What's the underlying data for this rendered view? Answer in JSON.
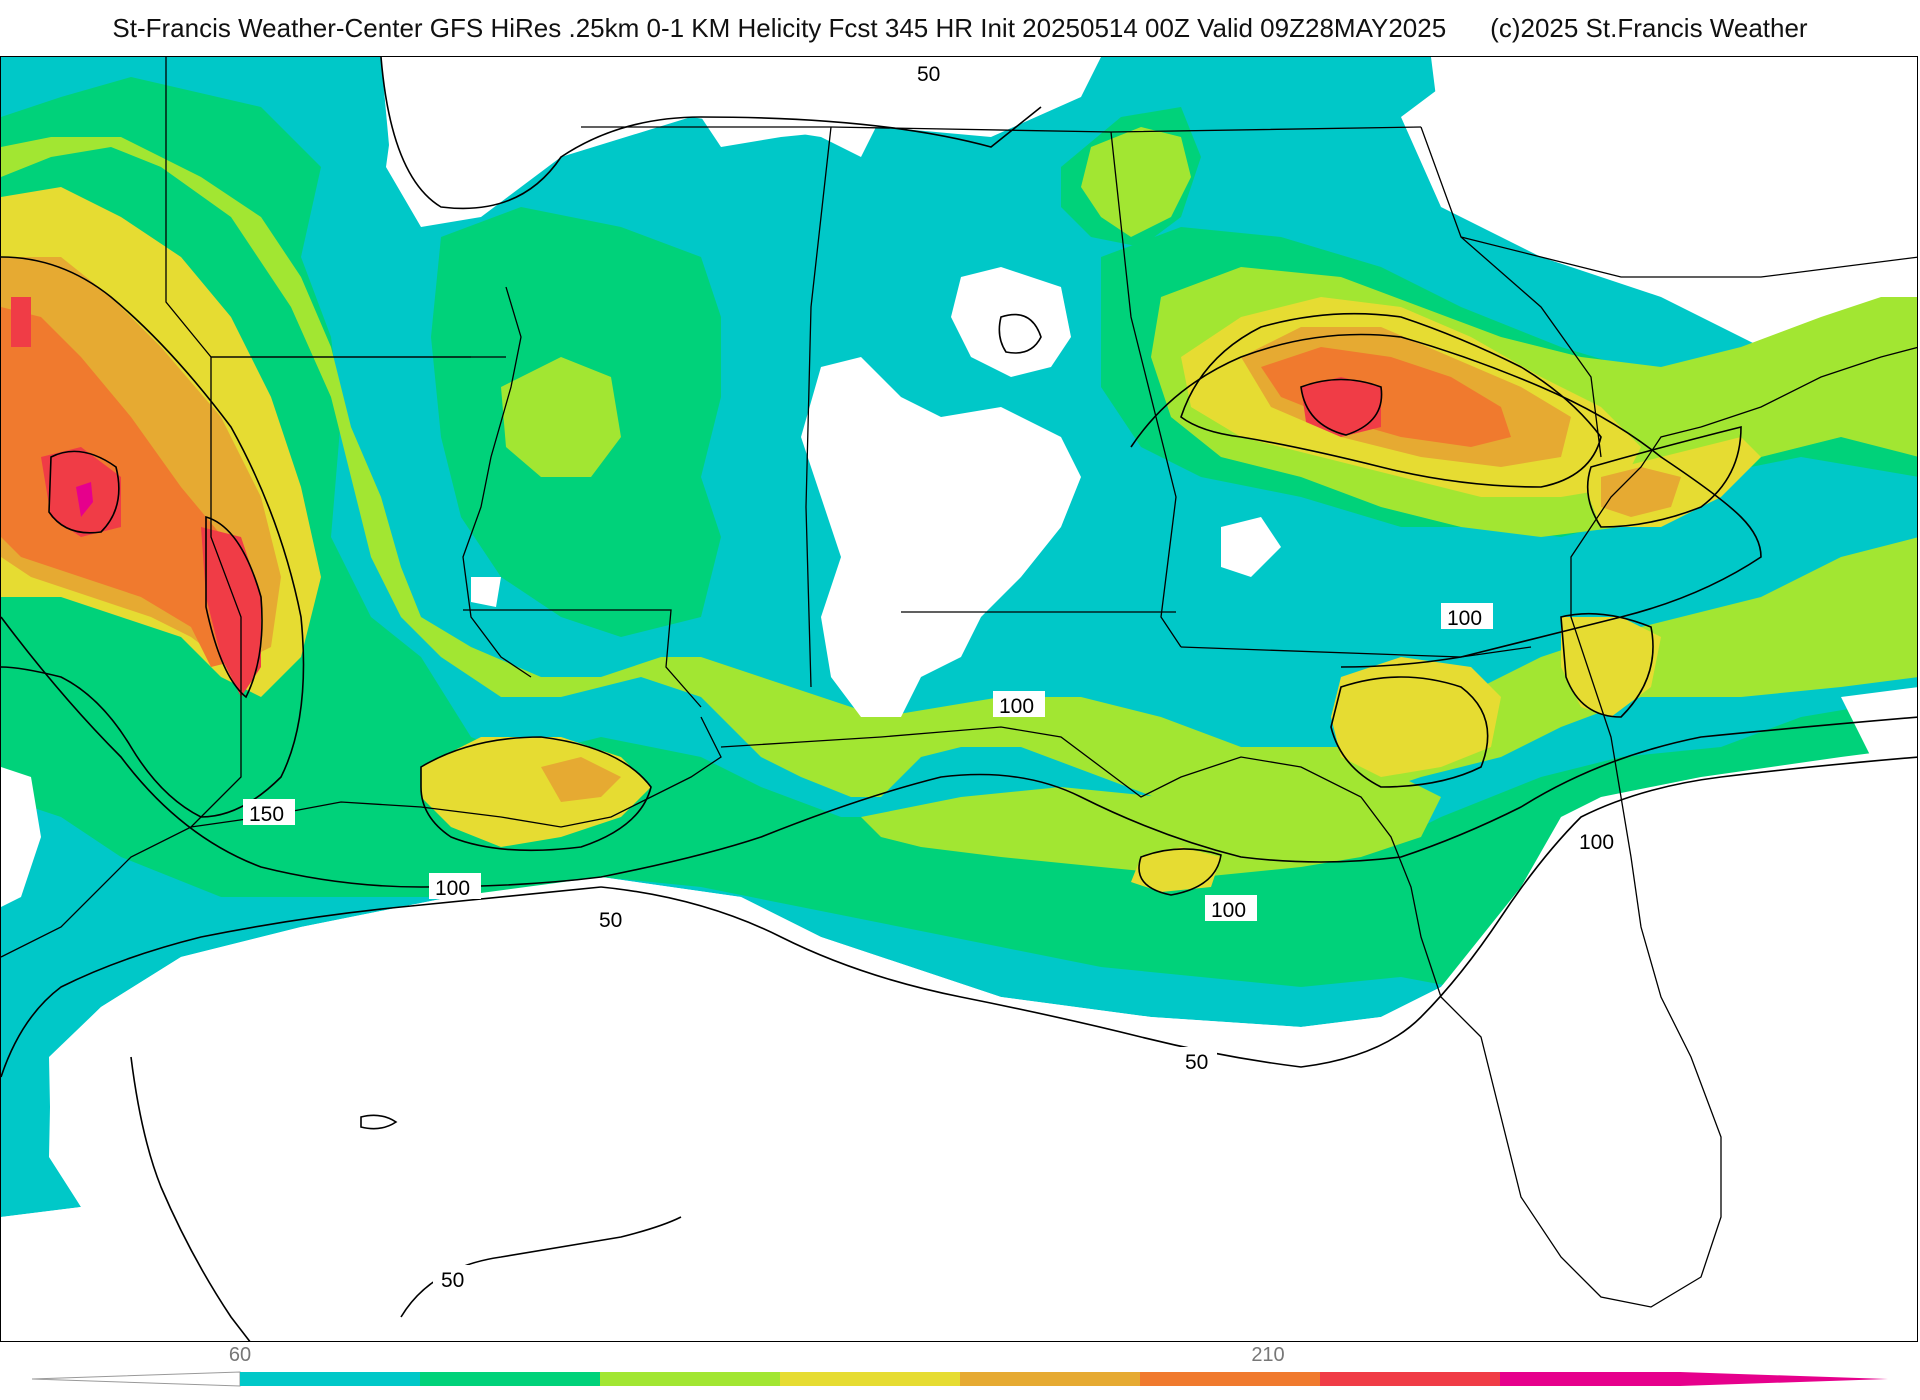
{
  "title": {
    "main": "St-Francis Weather-Center GFS HiRes .25km 0-1 KM Helicity Fcst 345 HR Init 20250514 00Z  Valid 09Z28MAY2025",
    "copyright": "(c)2025 St.Francis Weather"
  },
  "colorbar": {
    "tick_labels": [
      "60",
      "210"
    ],
    "colors": [
      "#00c8c8",
      "#00d27a",
      "#a2e632",
      "#e6dc32",
      "#e6aa32",
      "#f07a2e",
      "#f03c46",
      "#e6008c"
    ]
  },
  "contour_labels": [
    "50",
    "50",
    "50",
    "50",
    "100",
    "100",
    "100",
    "100",
    "100",
    "100",
    "150"
  ],
  "legend": {
    "field": "0-1 KM Helicity",
    "fill_levels": [
      60,
      210
    ]
  }
}
